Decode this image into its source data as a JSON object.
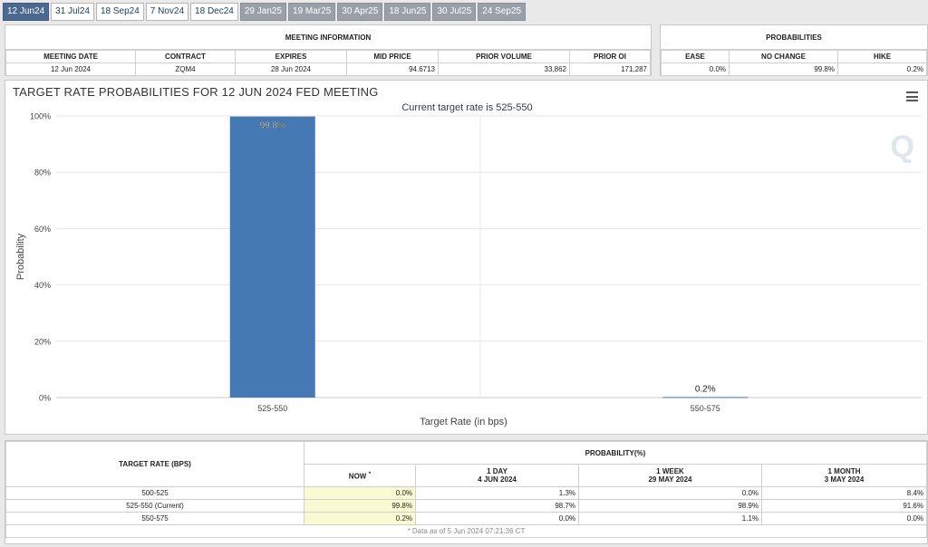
{
  "tabs": [
    {
      "label": "12 Jun24",
      "state": "active"
    },
    {
      "label": "31 Jul24",
      "state": "normal"
    },
    {
      "label": "18 Sep24",
      "state": "normal"
    },
    {
      "label": "7 Nov24",
      "state": "normal"
    },
    {
      "label": "18 Dec24",
      "state": "normal"
    },
    {
      "label": "29 Jan25",
      "state": "grey"
    },
    {
      "label": "19 Mar25",
      "state": "grey"
    },
    {
      "label": "30 Apr25",
      "state": "grey"
    },
    {
      "label": "18 Jun25",
      "state": "grey"
    },
    {
      "label": "30 Jul25",
      "state": "grey"
    },
    {
      "label": "24 Sep25",
      "state": "grey"
    }
  ],
  "meeting_info": {
    "title": "MEETING INFORMATION",
    "headers": [
      "MEETING DATE",
      "CONTRACT",
      "EXPIRES",
      "MID PRICE",
      "PRIOR VOLUME",
      "PRIOR OI"
    ],
    "row": [
      "12 Jun 2024",
      "ZQM4",
      "28 Jun 2024",
      "94.6713",
      "33,862",
      "171,287"
    ]
  },
  "probabilities": {
    "title": "PROBABILITIES",
    "headers": [
      "EASE",
      "NO CHANGE",
      "HIKE"
    ],
    "row": [
      "0.0%",
      "99.8%",
      "0.2%"
    ]
  },
  "chart": {
    "menu_icon": "hamburger-menu-icon",
    "watermark": "Q"
  },
  "chart_data": {
    "type": "bar",
    "title": "TARGET RATE PROBABILITIES FOR 12 JUN 2024 FED MEETING",
    "subtitle": "Current target rate is 525-550",
    "categories": [
      "525-550",
      "550-575"
    ],
    "values": [
      99.8,
      0.2
    ],
    "data_labels": [
      "99.8%",
      "0.2%"
    ],
    "xlabel": "Target Rate (in bps)",
    "ylabel": "Probability",
    "ylim": [
      0,
      100
    ],
    "yticks": [
      "0%",
      "20%",
      "40%",
      "60%",
      "80%",
      "100%"
    ],
    "grid": true,
    "bar_color": "#4579b3"
  },
  "prob_table": {
    "col_rate": "TARGET RATE (BPS)",
    "col_prob": "PROBABILITY(%)",
    "now_label": "NOW",
    "now_mark": "*",
    "periods": [
      {
        "label": "1 DAY",
        "date": "4 JUN 2024"
      },
      {
        "label": "1 WEEK",
        "date": "29 MAY 2024"
      },
      {
        "label": "1 MONTH",
        "date": "3 MAY 2024"
      }
    ],
    "rows": [
      {
        "rate": "500-525",
        "now": "0.0%",
        "d1": "1.3%",
        "w1": "0.0%",
        "m1": "8.4%"
      },
      {
        "rate": "525-550 (Current)",
        "now": "99.8%",
        "d1": "98.7%",
        "w1": "98.9%",
        "m1": "91.6%"
      },
      {
        "rate": "550-575",
        "now": "0.2%",
        "d1": "0.0%",
        "w1": "1.1%",
        "m1": "0.0%"
      }
    ],
    "footnote": "* Data as of 5 Jun 2024 07:21:36 CT"
  }
}
